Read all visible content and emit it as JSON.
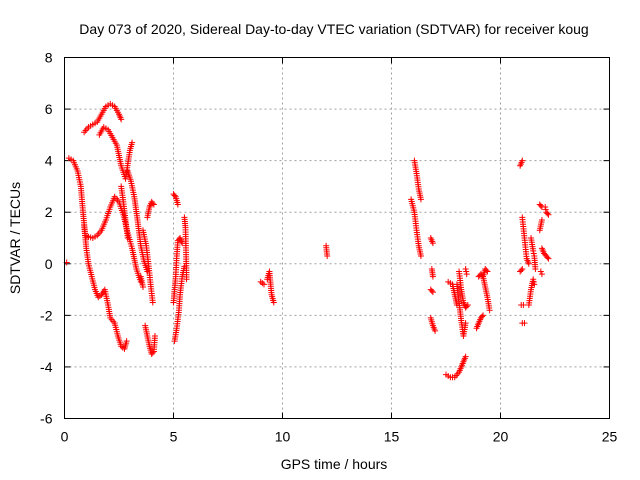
{
  "chart_data": {
    "type": "scatter",
    "title": "Day 073 of 2020, Sidereal Day-to-day VTEC variation (SDTVAR) for receiver koug",
    "xlabel": "GPS time / hours",
    "ylabel": "SDTVAR / TECUs",
    "xlim": [
      0,
      25
    ],
    "ylim": [
      -6,
      8
    ],
    "xticks": [
      "0",
      "5",
      "10",
      "15",
      "20",
      "25"
    ],
    "yticks": [
      "-6",
      "-4",
      "-2",
      "0",
      "2",
      "4",
      "6",
      "8"
    ],
    "grid": true,
    "marker": "plus",
    "color": "#ff0000",
    "series": [
      {
        "segments": [
          [
            [
              0.1,
              0.05
            ]
          ],
          [
            [
              0.2,
              4.1
            ],
            [
              0.4,
              4.0
            ],
            [
              0.6,
              3.6
            ],
            [
              0.75,
              3.0
            ],
            [
              0.85,
              2.0
            ],
            [
              0.95,
              1.1
            ],
            [
              1.1,
              1.05
            ],
            [
              1.3,
              1.0
            ],
            [
              1.5,
              1.1
            ],
            [
              1.7,
              1.3
            ],
            [
              1.9,
              1.7
            ],
            [
              2.1,
              2.2
            ],
            [
              2.3,
              2.6
            ],
            [
              2.5,
              2.4
            ],
            [
              2.7,
              1.9
            ],
            [
              2.9,
              1.2
            ],
            [
              3.1,
              0.6
            ],
            [
              3.3,
              -0.2
            ],
            [
              3.5,
              -0.7
            ]
          ],
          [
            [
              0.9,
              1.5
            ],
            [
              1.0,
              0.6
            ],
            [
              1.1,
              0.0
            ],
            [
              1.25,
              -0.5
            ],
            [
              1.4,
              -1.0
            ],
            [
              1.55,
              -1.3
            ],
            [
              1.7,
              -1.2
            ],
            [
              1.85,
              -1.0
            ],
            [
              2.0,
              -1.6
            ],
            [
              2.1,
              -2.1
            ],
            [
              2.3,
              -2.3
            ],
            [
              2.45,
              -2.8
            ],
            [
              2.6,
              -3.2
            ],
            [
              2.75,
              -3.3
            ],
            [
              2.85,
              -3.0
            ]
          ],
          [
            [
              0.9,
              5.1
            ],
            [
              1.1,
              5.3
            ],
            [
              1.3,
              5.4
            ],
            [
              1.5,
              5.5
            ],
            [
              1.7,
              5.8
            ],
            [
              1.9,
              6.1
            ],
            [
              2.1,
              6.2
            ],
            [
              2.3,
              6.1
            ],
            [
              2.5,
              5.8
            ],
            [
              2.6,
              5.6
            ]
          ],
          [
            [
              1.6,
              5.0
            ],
            [
              1.8,
              5.3
            ],
            [
              2.0,
              5.2
            ],
            [
              2.2,
              4.9
            ],
            [
              2.4,
              4.6
            ],
            [
              2.6,
              3.8
            ],
            [
              2.8,
              3.3
            ],
            [
              3.0,
              4.4
            ],
            [
              3.1,
              4.7
            ]
          ],
          [
            [
              2.6,
              3.0
            ],
            [
              2.7,
              2.4
            ],
            [
              2.8,
              1.7
            ],
            [
              2.9,
              1.0
            ]
          ],
          [
            [
              2.9,
              3.6
            ],
            [
              3.05,
              3.2
            ],
            [
              3.2,
              2.6
            ],
            [
              3.35,
              1.7
            ],
            [
              3.5,
              0.7
            ],
            [
              3.65,
              0.1
            ],
            [
              3.8,
              -0.3
            ]
          ],
          [
            [
              3.5,
              -0.5
            ],
            [
              3.6,
              -0.9
            ]
          ],
          [
            [
              3.6,
              1.3
            ],
            [
              3.75,
              0.7
            ],
            [
              3.85,
              0.0
            ],
            [
              3.95,
              -0.8
            ],
            [
              4.05,
              -1.5
            ]
          ],
          [
            [
              3.7,
              -2.4
            ],
            [
              3.8,
              -2.8
            ],
            [
              3.9,
              -3.2
            ],
            [
              4.0,
              -3.5
            ],
            [
              4.1,
              -3.4
            ],
            [
              4.15,
              -2.8
            ]
          ],
          [
            [
              3.8,
              1.8
            ],
            [
              3.9,
              2.2
            ],
            [
              4.0,
              2.4
            ],
            [
              4.1,
              2.3
            ]
          ],
          [
            [
              5.0,
              2.7
            ],
            [
              5.1,
              2.6
            ],
            [
              5.2,
              2.3
            ]
          ],
          [
            [
              5.0,
              -1.5
            ],
            [
              5.1,
              -0.5
            ],
            [
              5.15,
              0.3
            ],
            [
              5.2,
              0.9
            ],
            [
              5.3,
              1.0
            ],
            [
              5.4,
              0.8
            ]
          ],
          [
            [
              5.05,
              -3.0
            ],
            [
              5.15,
              -2.5
            ],
            [
              5.25,
              -1.8
            ],
            [
              5.3,
              -1.2
            ],
            [
              5.4,
              -0.5
            ],
            [
              5.5,
              -0.1
            ]
          ],
          [
            [
              5.5,
              1.8
            ],
            [
              5.55,
              1.4
            ],
            [
              5.6,
              -0.6
            ]
          ],
          [
            [
              9.0,
              -0.7
            ],
            [
              9.15,
              -0.8
            ]
          ],
          [
            [
              9.3,
              -0.6
            ],
            [
              9.4,
              -0.3
            ],
            [
              9.5,
              -1.2
            ],
            [
              9.6,
              -1.5
            ]
          ],
          [
            [
              12.0,
              0.7
            ],
            [
              12.05,
              0.3
            ]
          ],
          [
            [
              16.05,
              4.0
            ],
            [
              16.15,
              3.5
            ],
            [
              16.25,
              2.9
            ],
            [
              16.35,
              2.5
            ]
          ],
          [
            [
              15.9,
              2.5
            ],
            [
              16.05,
              2.0
            ],
            [
              16.15,
              1.3
            ],
            [
              16.25,
              0.7
            ],
            [
              16.35,
              0.3
            ]
          ],
          [
            [
              16.8,
              1.0
            ],
            [
              16.9,
              0.8
            ]
          ],
          [
            [
              16.85,
              -0.2
            ],
            [
              16.9,
              -0.5
            ]
          ],
          [
            [
              16.8,
              -1.0
            ],
            [
              16.9,
              -1.1
            ]
          ],
          [
            [
              16.8,
              -2.1
            ],
            [
              16.9,
              -2.4
            ],
            [
              17.0,
              -2.6
            ]
          ],
          [
            [
              17.6,
              -0.7
            ],
            [
              17.8,
              -0.8
            ],
            [
              17.9,
              -1.2
            ],
            [
              18.0,
              -1.6
            ]
          ],
          [
            [
              17.5,
              -4.3
            ],
            [
              17.7,
              -4.4
            ],
            [
              17.9,
              -4.4
            ],
            [
              18.1,
              -4.2
            ],
            [
              18.2,
              -4.0
            ],
            [
              18.3,
              -3.8
            ],
            [
              18.4,
              -3.6
            ]
          ],
          [
            [
              18.1,
              -0.3
            ],
            [
              18.2,
              -1.0
            ],
            [
              18.3,
              -1.5
            ],
            [
              18.4,
              -1.7
            ],
            [
              18.5,
              -1.6
            ]
          ],
          [
            [
              18.0,
              -0.8
            ],
            [
              18.2,
              -2.2
            ],
            [
              18.3,
              -2.8
            ],
            [
              18.4,
              -2.3
            ]
          ],
          [
            [
              18.4,
              -0.2
            ],
            [
              18.45,
              -0.4
            ]
          ],
          [
            [
              18.9,
              -2.5
            ],
            [
              19.0,
              -2.3
            ],
            [
              19.1,
              -2.1
            ],
            [
              19.2,
              -2.0
            ]
          ],
          [
            [
              19.0,
              -0.5
            ],
            [
              19.1,
              -0.4
            ],
            [
              19.2,
              -0.5
            ],
            [
              19.3,
              -0.9
            ],
            [
              19.4,
              -1.3
            ],
            [
              19.5,
              -1.8
            ]
          ],
          [
            [
              19.2,
              -0.5
            ],
            [
              19.3,
              -0.2
            ],
            [
              19.4,
              -0.3
            ]
          ],
          [
            [
              20.9,
              3.8
            ],
            [
              21.0,
              4.0
            ]
          ],
          [
            [
              21.0,
              1.8
            ],
            [
              21.1,
              1.0
            ],
            [
              21.2,
              0.2
            ],
            [
              21.3,
              0.0
            ]
          ],
          [
            [
              20.9,
              -0.3
            ],
            [
              21.0,
              -0.2
            ]
          ],
          [
            [
              20.95,
              -1.6
            ],
            [
              21.05,
              -1.6
            ]
          ],
          [
            [
              21.0,
              -2.3
            ],
            [
              21.1,
              -2.3
            ]
          ],
          [
            [
              21.3,
              -1.6
            ],
            [
              21.4,
              -1.0
            ],
            [
              21.5,
              -0.6
            ],
            [
              21.55,
              -0.8
            ]
          ],
          [
            [
              21.4,
              1.0
            ],
            [
              21.5,
              0.5
            ],
            [
              21.55,
              0.3
            ],
            [
              21.6,
              -0.2
            ]
          ],
          [
            [
              21.8,
              1.3
            ],
            [
              21.9,
              1.7
            ]
          ],
          [
            [
              21.8,
              2.3
            ],
            [
              21.9,
              2.2
            ]
          ],
          [
            [
              21.9,
              0.6
            ],
            [
              22.0,
              0.4
            ],
            [
              22.1,
              0.3
            ],
            [
              22.2,
              0.2
            ]
          ],
          [
            [
              21.85,
              -0.3
            ],
            [
              21.9,
              -0.4
            ]
          ],
          [
            [
              22.05,
              2.2
            ],
            [
              22.1,
              2.0
            ],
            [
              22.2,
              1.9
            ]
          ]
        ]
      }
    ]
  }
}
